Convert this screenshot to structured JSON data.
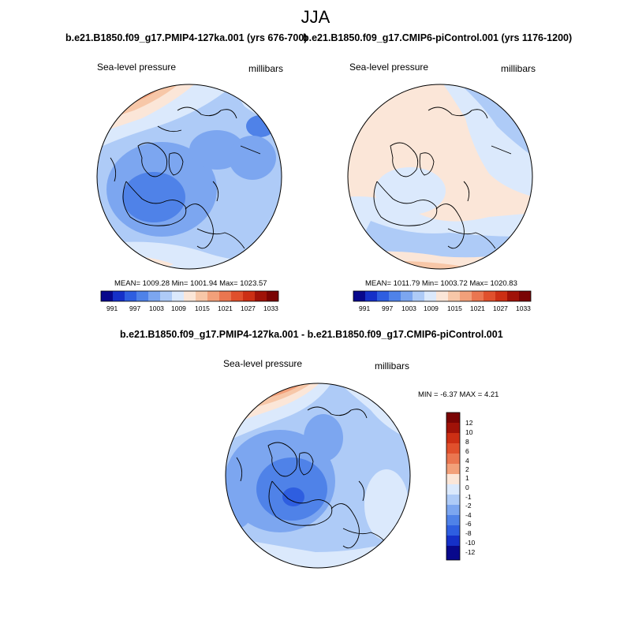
{
  "figure": {
    "season": "JJA"
  },
  "panels": [
    {
      "title": "b.e21.B1850.f09_g17.PMIP4-127ka.001 (yrs 676-700)",
      "variable": "Sea-level pressure",
      "units": "millibars",
      "stats": "MEAN= 1009.28  Min= 1001.94  Max= 1023.57",
      "colorbar_ticks": [
        "991",
        "997",
        "1003",
        "1009",
        "1015",
        "1021",
        "1027",
        "1033"
      ]
    },
    {
      "title": "b.e21.B1850.f09_g17.CMIP6-piControl.001 (yrs 1176-1200)",
      "variable": "Sea-level pressure",
      "units": "millibars",
      "stats": "MEAN= 1011.79  Min= 1003.72  Max= 1020.83",
      "colorbar_ticks": [
        "991",
        "997",
        "1003",
        "1009",
        "1015",
        "1021",
        "1027",
        "1033"
      ]
    },
    {
      "title": "b.e21.B1850.f09_g17.PMIP4-127ka.001 - b.e21.B1850.f09_g17.CMIP6-piControl.001",
      "variable": "Sea-level pressure",
      "units": "millibars",
      "stats": "MIN =  -6.37 MAX =   4.21",
      "colorbar_ticks": [
        "12",
        "10",
        "8",
        "6",
        "4",
        "2",
        "1",
        "0",
        "-1",
        "-2",
        "-4",
        "-6",
        "-8",
        "-10",
        "-12"
      ]
    }
  ],
  "colors": {
    "abs_scale": [
      "#08088c",
      "#1530c8",
      "#2e5ee0",
      "#4f82e8",
      "#7ca6f0",
      "#aecbf7",
      "#dbe9fc",
      "#fbe6d8",
      "#f7c7a8",
      "#f2a07a",
      "#ea7650",
      "#e0502c",
      "#cc2f14",
      "#a01208",
      "#7a0404"
    ],
    "diff_scale": [
      "#7a0404",
      "#a01208",
      "#cc2f14",
      "#e0502c",
      "#ea7650",
      "#f2a07a",
      "#fbe6d8",
      "#dbe9fc",
      "#aecbf7",
      "#7ca6f0",
      "#4f82e8",
      "#2e5ee0",
      "#1530c8",
      "#08088c"
    ],
    "coastline": "#000000"
  }
}
